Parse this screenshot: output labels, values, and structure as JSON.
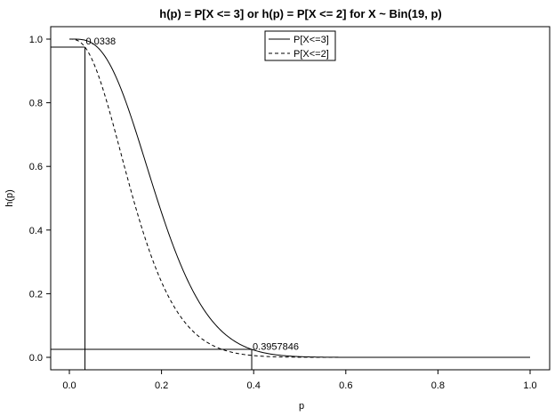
{
  "chart_data": {
    "type": "line",
    "title": "h(p) = P[X <= 3] or h(p) = P[X <= 2] for X ~ Bin(19, p)",
    "xlabel": "p",
    "ylabel": "h(p)",
    "xlim": [
      0.0,
      1.0
    ],
    "ylim": [
      0.0,
      1.0
    ],
    "x_ticks": [
      "0.0",
      "0.2",
      "0.4",
      "0.6",
      "0.8",
      "1.0"
    ],
    "y_ticks": [
      "0.0",
      "0.2",
      "0.4",
      "0.6",
      "0.8",
      "1.0"
    ],
    "grid": false,
    "legend_position": "top-center",
    "binomial_n": 19,
    "x": [
      0.0,
      0.05,
      0.1,
      0.15,
      0.2,
      0.25,
      0.3,
      0.35,
      0.4,
      0.5,
      0.6,
      0.7,
      0.8,
      0.9,
      1.0
    ],
    "series": [
      {
        "name": "P[X<=3]",
        "style": "solid",
        "k": 3,
        "values": [
          1.0,
          0.9868,
          0.885,
          0.6841,
          0.4551,
          0.2631,
          0.1332,
          0.0594,
          0.023,
          0.0022,
          0.0001,
          0.0,
          0.0,
          0.0,
          0.0
        ]
      },
      {
        "name": "P[X<=2]",
        "style": "dashed",
        "k": 2,
        "values": [
          1.0,
          0.9335,
          0.7054,
          0.4413,
          0.2369,
          0.1113,
          0.0462,
          0.017,
          0.0055,
          0.0004,
          0.0,
          0.0,
          0.0,
          0.0,
          0.0
        ]
      }
    ],
    "reference_lines": [
      {
        "type": "vertical",
        "x": 0.0338,
        "label": "0.0338"
      },
      {
        "type": "horizontal",
        "y": 0.975
      },
      {
        "type": "vertical",
        "x": 0.3957846,
        "label": "0.3957846"
      },
      {
        "type": "horizontal",
        "y": 0.025
      }
    ],
    "annotations": [
      {
        "text": "0.0338",
        "x": 0.0338,
        "y": 0.995
      },
      {
        "text": "0.3957846",
        "x": 0.3957846,
        "y": 0.035
      }
    ]
  }
}
